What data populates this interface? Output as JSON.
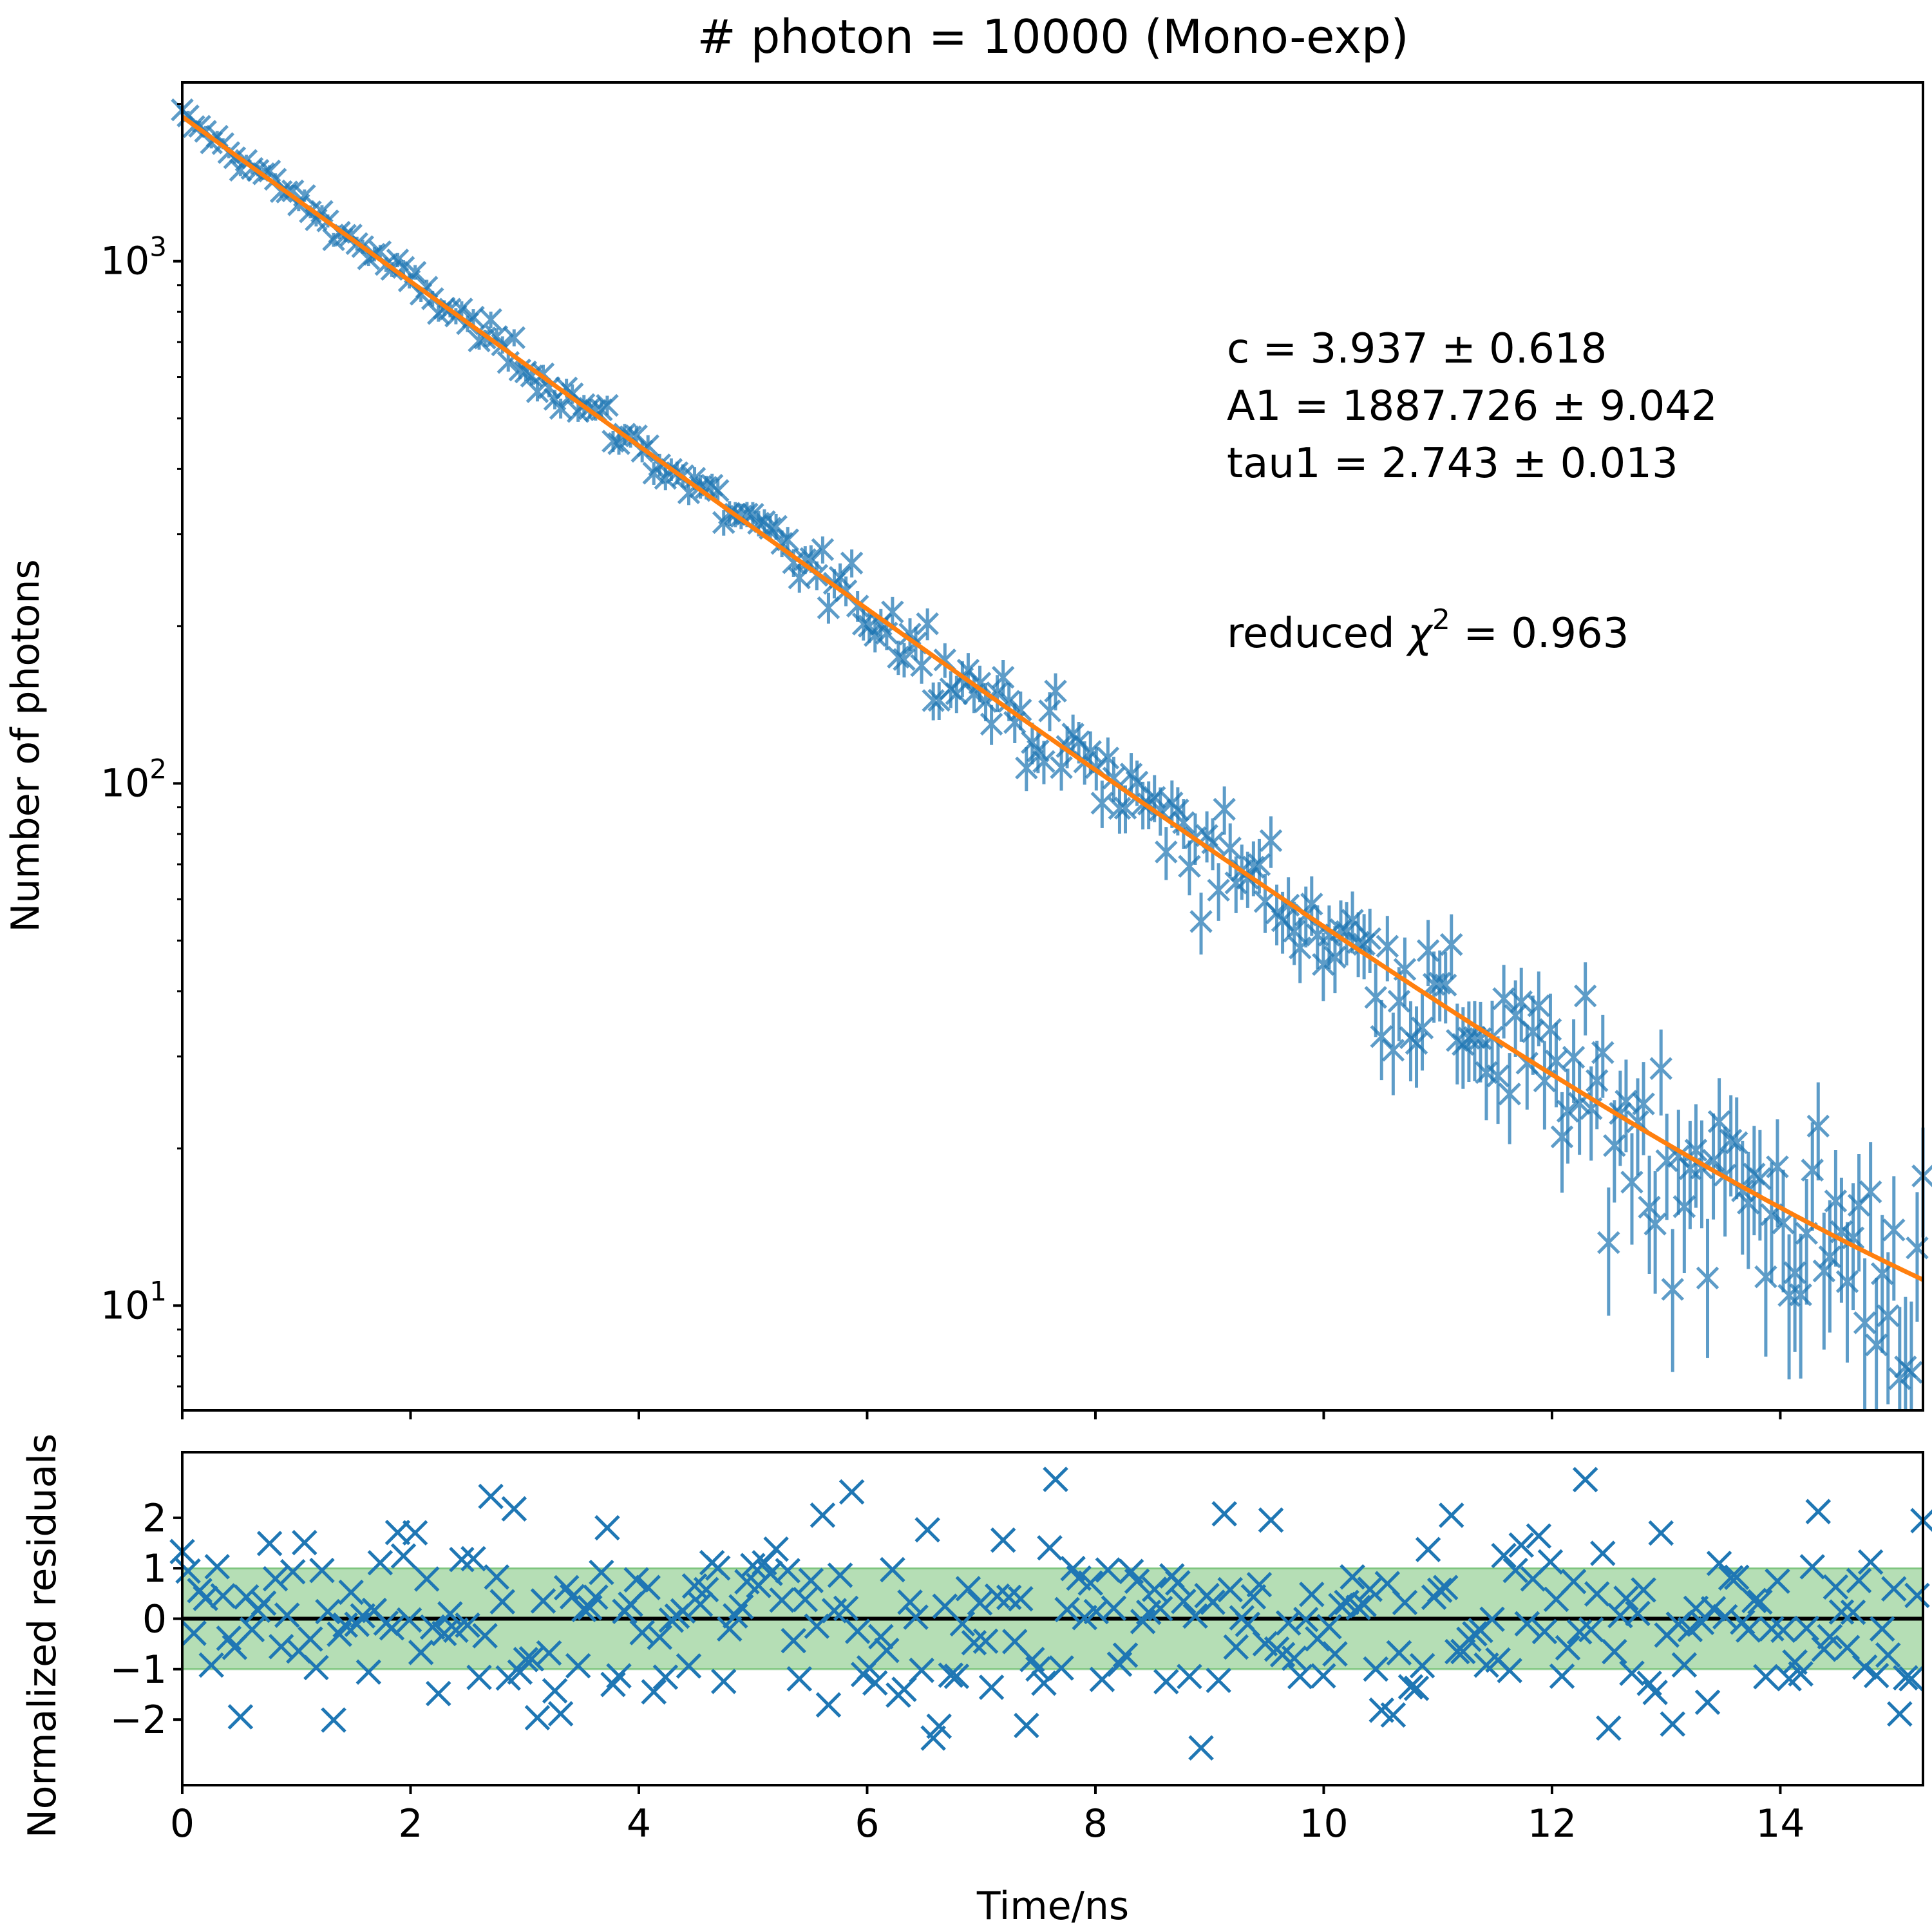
{
  "chart_data": {
    "title": "# photon = 10000 (Mono-exp)",
    "colors": {
      "data": "#1f77b4",
      "fit": "#ff7f0e",
      "band": "#2ca02c",
      "zero_line": "#000000"
    },
    "top_panel": {
      "type": "scatter",
      "ylabel": "Number of photons",
      "yscale": "log",
      "ylim": [
        6.3,
        2200
      ],
      "xlim": [
        0,
        15.25
      ],
      "yticks": [
        {
          "base": "10",
          "exp": "1",
          "value": 10
        },
        {
          "base": "10",
          "exp": "2",
          "value": 100
        },
        {
          "base": "10",
          "exp": "3",
          "value": 1000
        }
      ],
      "marker": "x with vertical error bars",
      "fit_line": {
        "model": "c + A1*exp(-t/tau1)",
        "c": 3.937,
        "A1": 1887.726,
        "tau1": 2.743
      },
      "data_summary": {
        "n_points": 300,
        "x_range": [
          0,
          15.25
        ],
        "noise": "Poisson"
      },
      "annotations": [
        "c = 3.937 ± 0.618",
        "A1 = 1887.726 ± 9.042",
        "tau1 = 2.743 ± 0.013"
      ],
      "chi2": {
        "prefix": "reduced ",
        "symbol": "χ",
        "sup": "2",
        "suffix": " = 0.963"
      }
    },
    "bottom_panel": {
      "type": "scatter",
      "ylabel": "Normalized residuals",
      "xlabel": "Time/ns",
      "ylim": [
        -3.3,
        3.3
      ],
      "xlim": [
        0,
        15.25
      ],
      "yticks": [
        "−2",
        "−1",
        "0",
        "1",
        "2"
      ],
      "ytick_values": [
        -2,
        -1,
        0,
        1,
        2
      ],
      "xticks": [
        "0",
        "2",
        "4",
        "6",
        "8",
        "10",
        "12",
        "14"
      ],
      "xtick_values": [
        0,
        2,
        4,
        6,
        8,
        10,
        12,
        14
      ],
      "band": [
        -1,
        1
      ],
      "zero_line": 0,
      "residual_range": [
        -3.1,
        2.9
      ]
    }
  }
}
